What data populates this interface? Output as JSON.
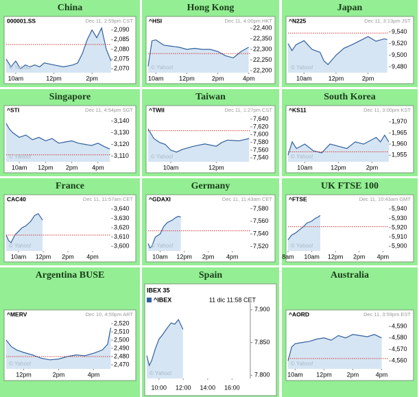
{
  "chart_data": [
    {
      "type": "line",
      "title": "China",
      "symbol": "000001.SS",
      "timestamp": "Dec 11, 2:59pm CST",
      "watermark": "© Yahoo!",
      "color": "#2f5f9e",
      "fill": "#d6e5f3",
      "prev_close_color": "#cc3333",
      "x": [
        9.5,
        9.75,
        10,
        10.25,
        10.5,
        10.75,
        11,
        11.25,
        11.5,
        12,
        12.5,
        13,
        13.25,
        13.5,
        13.75,
        14,
        14.25,
        14.5,
        14.75,
        15
      ],
      "values": [
        2075,
        2071,
        2074,
        2070,
        2072,
        2071,
        2072,
        2071,
        2073,
        2072,
        2071,
        2072,
        2073,
        2078,
        2085,
        2090,
        2086,
        2091,
        2080,
        2074
      ],
      "prev_close": 2082.5,
      "xlim": [
        9.5,
        15
      ],
      "ylim": [
        2068,
        2092
      ],
      "xticks": [
        {
          "value": 10,
          "label": "10am"
        },
        {
          "value": 12,
          "label": "12pm"
        },
        {
          "value": 14,
          "label": "2pm"
        }
      ],
      "yticks": [
        {
          "value": 2070,
          "label": "2,070"
        },
        {
          "value": 2075,
          "label": "2,075"
        },
        {
          "value": 2080,
          "label": "2,080"
        },
        {
          "value": 2085,
          "label": "2,085"
        },
        {
          "value": 2090,
          "label": "2,090"
        }
      ]
    },
    {
      "type": "line",
      "title": "Hong Kong",
      "symbol": "^HSI",
      "timestamp": "Dec 11, 4:00pm HKT",
      "watermark": "© Yahoo!",
      "color": "#2f5f9e",
      "fill": "#d6e5f3",
      "prev_close_color": "#cc3333",
      "x": [
        9.5,
        9.75,
        10,
        10.5,
        11,
        11.5,
        12,
        12.5,
        13,
        13.5,
        14,
        14.5,
        15,
        15.5,
        16
      ],
      "values": [
        22220,
        22340,
        22345,
        22320,
        22315,
        22310,
        22300,
        22305,
        22300,
        22300,
        22290,
        22270,
        22260,
        22290,
        22310
      ],
      "prev_close": 22280,
      "xlim": [
        9.5,
        16.1
      ],
      "ylim": [
        22190,
        22410
      ],
      "xticks": [
        {
          "value": 10,
          "label": "10am"
        },
        {
          "value": 12,
          "label": "12pm"
        },
        {
          "value": 14,
          "label": "2pm"
        },
        {
          "value": 16,
          "label": "4pm"
        }
      ],
      "yticks": [
        {
          "value": 22200,
          "label": "22,200"
        },
        {
          "value": 22250,
          "label": "22,250"
        },
        {
          "value": 22300,
          "label": "22,300"
        },
        {
          "value": 22350,
          "label": "22,350"
        },
        {
          "value": 22400,
          "label": "22,400"
        }
      ]
    },
    {
      "type": "line",
      "title": "Japan",
      "symbol": "^N225",
      "timestamp": "Dec 11, 3:13pm JST",
      "watermark": "© Yahoo!",
      "color": "#2f5f9e",
      "fill": "#d6e5f3",
      "prev_close_color": "#cc3333",
      "x": [
        9,
        9.25,
        9.5,
        10,
        10.5,
        11,
        11.25,
        11.5,
        12,
        12.5,
        13,
        13.5,
        14,
        14.5,
        15,
        15.2
      ],
      "values": [
        9520,
        9508,
        9518,
        9525,
        9510,
        9505,
        9490,
        9484,
        9500,
        9512,
        9518,
        9525,
        9532,
        9524,
        9528,
        9527
      ],
      "prev_close": 9538,
      "xlim": [
        9,
        15.3
      ],
      "ylim": [
        9470,
        9550
      ],
      "xticks": [
        {
          "value": 10,
          "label": "10am"
        },
        {
          "value": 12,
          "label": "12pm"
        },
        {
          "value": 14,
          "label": "2pm"
        }
      ],
      "yticks": [
        {
          "value": 9480,
          "label": "9,480"
        },
        {
          "value": 9500,
          "label": "9,500"
        },
        {
          "value": 9520,
          "label": "9,520"
        },
        {
          "value": 9540,
          "label": "9,540"
        }
      ]
    },
    {
      "type": "line",
      "title": "Singapore",
      "symbol": "^STI",
      "timestamp": "Dec 11, 4:54pm SGT",
      "watermark": "© Yahoo!",
      "color": "#2f5f9e",
      "fill": "#d6e5f3",
      "prev_close_color": "#cc3333",
      "x": [
        9,
        9.25,
        9.5,
        10,
        10.5,
        11,
        11.5,
        12,
        12.5,
        13,
        13.5,
        14,
        14.5,
        15,
        15.5,
        16,
        16.5,
        16.9
      ],
      "values": [
        3138,
        3133,
        3130,
        3126,
        3128,
        3124,
        3126,
        3123,
        3125,
        3121,
        3122,
        3123,
        3121,
        3120,
        3119,
        3121,
        3118,
        3116
      ],
      "prev_close": 3111,
      "xlim": [
        9,
        17
      ],
      "ylim": [
        3105,
        3145
      ],
      "xticks": [
        {
          "value": 10,
          "label": "10am"
        },
        {
          "value": 12,
          "label": "12pm"
        },
        {
          "value": 14,
          "label": "2pm"
        },
        {
          "value": 16,
          "label": "4pm"
        }
      ],
      "yticks": [
        {
          "value": 3110,
          "label": "3,110"
        },
        {
          "value": 3120,
          "label": "3,120"
        },
        {
          "value": 3130,
          "label": "3,130"
        },
        {
          "value": 3140,
          "label": "3,140"
        }
      ]
    },
    {
      "type": "line",
      "title": "Taiwan",
      "symbol": "^TWII",
      "timestamp": "Dec 11, 1:27pm CST",
      "watermark": "© Yahoo!",
      "color": "#2f5f9e",
      "fill": "#d6e5f3",
      "prev_close_color": "#cc3333",
      "x": [
        9,
        9.25,
        9.5,
        9.75,
        10,
        10.25,
        10.5,
        11,
        11.5,
        12,
        12.25,
        12.5,
        13,
        13.45
      ],
      "values": [
        7615,
        7590,
        7580,
        7575,
        7560,
        7555,
        7562,
        7570,
        7576,
        7570,
        7580,
        7586,
        7584,
        7590
      ],
      "prev_close": 7610,
      "xlim": [
        9,
        13.5
      ],
      "ylim": [
        7530,
        7650
      ],
      "xticks": [
        {
          "value": 10,
          "label": "10am"
        },
        {
          "value": 12,
          "label": "12pm"
        }
      ],
      "yticks": [
        {
          "value": 7540,
          "label": "7,540"
        },
        {
          "value": 7560,
          "label": "7,560"
        },
        {
          "value": 7580,
          "label": "7,580"
        },
        {
          "value": 7600,
          "label": "7,600"
        },
        {
          "value": 7620,
          "label": "7,620"
        },
        {
          "value": 7640,
          "label": "7,640"
        }
      ]
    },
    {
      "type": "line",
      "title": "South Korea",
      "symbol": "^KS11",
      "timestamp": "Dec 11, 3:00pm KST",
      "watermark": "© Yahoo!",
      "color": "#2f5f9e",
      "fill": "#d6e5f3",
      "prev_close_color": "#cc3333",
      "x": [
        9,
        9.25,
        9.5,
        10,
        10.5,
        11,
        11.5,
        12,
        12.5,
        13,
        13.5,
        14,
        14.25,
        14.5,
        14.75,
        15
      ],
      "values": [
        1955,
        1961,
        1958,
        1960,
        1957,
        1956,
        1960,
        1959,
        1958,
        1961,
        1960,
        1962,
        1963,
        1961,
        1964,
        1961
      ],
      "prev_close": 1956.5,
      "xlim": [
        9,
        15
      ],
      "ylim": [
        1952,
        1973
      ],
      "xticks": [
        {
          "value": 10,
          "label": "10am"
        },
        {
          "value": 12,
          "label": "12pm"
        },
        {
          "value": 14,
          "label": "2pm"
        }
      ],
      "yticks": [
        {
          "value": 1955,
          "label": "1,955"
        },
        {
          "value": 1960,
          "label": "1,960"
        },
        {
          "value": 1965,
          "label": "1,965"
        },
        {
          "value": 1970,
          "label": "1,970"
        }
      ]
    },
    {
      "type": "line",
      "title": "France",
      "symbol": "CAC40",
      "timestamp": "Dec 11, 11:57am CET",
      "watermark": "© Yahoo!",
      "color": "#2f5f9e",
      "fill": "#d6e5f3",
      "prev_close_color": "#cc3333",
      "x": [
        9,
        9.2,
        9.4,
        9.7,
        10,
        10.3,
        10.6,
        11,
        11.3,
        11.6,
        11.95
      ],
      "values": [
        3612,
        3606,
        3604,
        3612,
        3616,
        3620,
        3622,
        3627,
        3633,
        3635,
        3628
      ],
      "prev_close": 3612,
      "xlim": [
        9,
        17.5
      ],
      "ylim": [
        3595,
        3645
      ],
      "xticks": [
        {
          "value": 10,
          "label": "10am"
        },
        {
          "value": 12,
          "label": "12pm"
        },
        {
          "value": 14,
          "label": "2pm"
        },
        {
          "value": 16,
          "label": "4pm"
        }
      ],
      "yticks": [
        {
          "value": 3600,
          "label": "3,600"
        },
        {
          "value": 3610,
          "label": "3,610"
        },
        {
          "value": 3620,
          "label": "3,620"
        },
        {
          "value": 3630,
          "label": "3,630"
        },
        {
          "value": 3640,
          "label": "3,640"
        }
      ]
    },
    {
      "type": "line",
      "title": "Germany",
      "symbol": "^GDAXI",
      "timestamp": "Dec 11, 11:43am CET",
      "watermark": "© Yahoo!",
      "color": "#2f5f9e",
      "fill": "#d6e5f3",
      "prev_close_color": "#cc3333",
      "x": [
        9,
        9.15,
        9.3,
        9.6,
        10,
        10.3,
        10.6,
        11,
        11.3,
        11.5,
        11.72
      ],
      "values": [
        7525,
        7518,
        7520,
        7535,
        7540,
        7552,
        7558,
        7562,
        7566,
        7568,
        7567
      ],
      "prev_close": 7545,
      "xlim": [
        9,
        17.5
      ],
      "ylim": [
        7513,
        7587
      ],
      "xticks": [
        {
          "value": 10,
          "label": "10am"
        },
        {
          "value": 12,
          "label": "12pm"
        },
        {
          "value": 14,
          "label": "2pm"
        },
        {
          "value": 16,
          "label": "4pm"
        }
      ],
      "yticks": [
        {
          "value": 7520,
          "label": "7,520"
        },
        {
          "value": 7540,
          "label": "7,540"
        },
        {
          "value": 7560,
          "label": "7,560"
        },
        {
          "value": 7580,
          "label": "7,580"
        }
      ]
    },
    {
      "type": "line",
      "title": "UK FTSE 100",
      "symbol": "^FTSE",
      "timestamp": "Dec 11, 10:43am GMT",
      "watermark": "© Yahoo!",
      "color": "#2f5f9e",
      "fill": "#d6e5f3",
      "prev_close_color": "#cc3333",
      "x": [
        8,
        8.3,
        8.6,
        9,
        9.3,
        9.6,
        10,
        10.3,
        10.5,
        10.72
      ],
      "values": [
        5907,
        5912,
        5914,
        5918,
        5921,
        5925,
        5927,
        5930,
        5931,
        5933
      ],
      "prev_close": 5921,
      "xlim": [
        8,
        16.5
      ],
      "ylim": [
        5895,
        5945
      ],
      "xticks": [
        {
          "value": 8,
          "label": "8am"
        },
        {
          "value": 10,
          "label": "10am"
        },
        {
          "value": 12,
          "label": "12pm"
        },
        {
          "value": 14,
          "label": "2pm"
        },
        {
          "value": 16,
          "label": "4pm"
        }
      ],
      "yticks": [
        {
          "value": 5900,
          "label": "5,900"
        },
        {
          "value": 5910,
          "label": "5,910"
        },
        {
          "value": 5920,
          "label": "5,920"
        },
        {
          "value": 5930,
          "label": "5,930"
        },
        {
          "value": 5940,
          "label": "5,940"
        }
      ]
    },
    {
      "type": "line",
      "title": "Argentina BUSE",
      "symbol": "^MERV",
      "timestamp": "Dec 10, 4:59pm ART",
      "watermark": "© Yahoo!",
      "color": "#2f5f9e",
      "fill": "#d6e5f3",
      "prev_close_color": "#cc3333",
      "x": [
        11,
        11.3,
        11.6,
        12,
        12.5,
        13,
        13.5,
        14,
        14.5,
        15,
        15.5,
        16,
        16.5,
        16.8,
        16.98
      ],
      "values": [
        2500,
        2492,
        2488,
        2485,
        2482,
        2478,
        2476,
        2477,
        2480,
        2482,
        2481,
        2484,
        2488,
        2495,
        2515
      ],
      "prev_close": 2480,
      "xlim": [
        11,
        17
      ],
      "ylim": [
        2465,
        2525
      ],
      "xticks": [
        {
          "value": 12,
          "label": "12pm"
        },
        {
          "value": 14,
          "label": "2pm"
        },
        {
          "value": 16,
          "label": "4pm"
        }
      ],
      "yticks": [
        {
          "value": 2470,
          "label": "2,470"
        },
        {
          "value": 2480,
          "label": "2,480"
        },
        {
          "value": 2490,
          "label": "2,490"
        },
        {
          "value": 2500,
          "label": "2,500"
        },
        {
          "value": 2510,
          "label": "2,510"
        },
        {
          "value": 2520,
          "label": "2,520"
        }
      ]
    },
    {
      "type": "line",
      "title": "Spain",
      "index_name": "IBEX 35",
      "symbol": "^IBEX",
      "timestamp": "11 dic 11:58 CET",
      "watermark": "© Yahoo!",
      "color": "#2f5f9e",
      "fill": "#d6e5f3",
      "x": [
        9,
        9.2,
        9.4,
        9.7,
        10,
        10.3,
        10.6,
        11,
        11.3,
        11.6,
        11.97
      ],
      "values": [
        7830,
        7815,
        7822,
        7840,
        7855,
        7862,
        7870,
        7880,
        7878,
        7885,
        7870
      ],
      "xlim": [
        9,
        17.5
      ],
      "ylim": [
        7795,
        7905
      ],
      "xticks": [
        {
          "value": 10,
          "label": "10:00"
        },
        {
          "value": 12,
          "label": "12:00"
        },
        {
          "value": 14,
          "label": "14:00"
        },
        {
          "value": 16,
          "label": "16:00"
        }
      ],
      "yticks": [
        {
          "value": 7800,
          "label": "7.800"
        },
        {
          "value": 7850,
          "label": "7.850"
        },
        {
          "value": 7900,
          "label": "7.900"
        }
      ]
    },
    {
      "type": "line",
      "title": "Australia",
      "symbol": "^AORD",
      "timestamp": "Dec 11, 3:59pm EST",
      "watermark": "© Yahoo!",
      "color": "#2f5f9e",
      "fill": "#d6e5f3",
      "prev_close_color": "#cc3333",
      "x": [
        9.5,
        9.75,
        10,
        10.5,
        11,
        11.5,
        12,
        12.5,
        13,
        13.5,
        14,
        14.5,
        15,
        15.5,
        16
      ],
      "values": [
        4560,
        4572,
        4575,
        4576,
        4577,
        4579,
        4580,
        4578,
        4582,
        4580,
        4583,
        4582,
        4581,
        4583,
        4580
      ],
      "prev_close": 4562,
      "xlim": [
        9.5,
        16.5
      ],
      "ylim": [
        4553,
        4596
      ],
      "xticks": [
        {
          "value": 10,
          "label": "10am"
        },
        {
          "value": 12,
          "label": "12pm"
        },
        {
          "value": 14,
          "label": "2pm"
        },
        {
          "value": 16,
          "label": "4pm"
        }
      ],
      "yticks": [
        {
          "value": 4560,
          "label": "4,560"
        },
        {
          "value": 4570,
          "label": "4,570"
        },
        {
          "value": 4580,
          "label": "4,580"
        },
        {
          "value": 4590,
          "label": "4,590"
        }
      ]
    }
  ]
}
